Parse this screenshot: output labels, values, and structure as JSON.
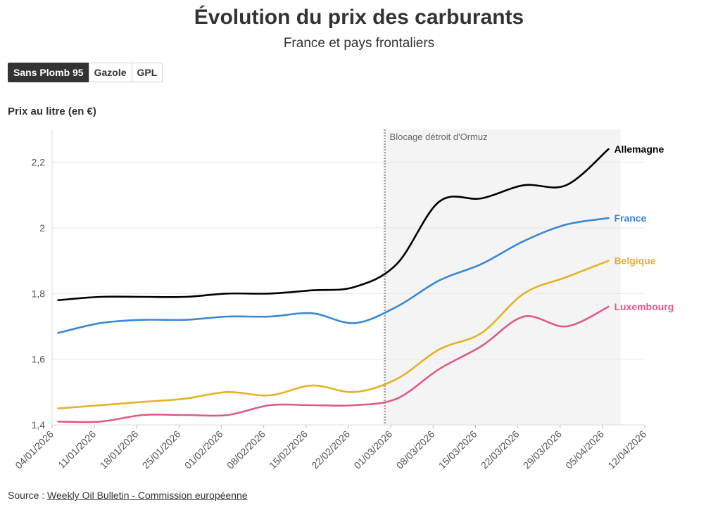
{
  "title": "Évolution du prix des carburants",
  "subtitle": "France et pays frontaliers",
  "tabs": [
    {
      "label": "Sans Plomb 95",
      "active": true
    },
    {
      "label": "Gazole",
      "active": false
    },
    {
      "label": "GPL",
      "active": false
    }
  ],
  "source": {
    "prefix": "Source :",
    "link_text": "Weekly Oil Bulletin - Commission européenne"
  },
  "chart_data": {
    "type": "line",
    "ylabel": "Prix au litre (en €)",
    "ylim": [
      1.4,
      2.3
    ],
    "yticks": [
      1.4,
      1.6,
      1.8,
      2.0,
      2.2
    ],
    "ytick_labels": [
      "1,4",
      "1,6",
      "1,8",
      "2",
      "2,2"
    ],
    "xlim": [
      "2026-01-04",
      "2026-04-12"
    ],
    "xticks": [
      "04/01/2026",
      "11/01/2026",
      "18/01/2026",
      "25/01/2026",
      "01/02/2026",
      "08/02/2026",
      "15/02/2026",
      "22/02/2026",
      "01/03/2026",
      "08/03/2026",
      "15/03/2026",
      "22/03/2026",
      "29/03/2026",
      "05/04/2026",
      "12/04/2026"
    ],
    "grid": true,
    "annotation": {
      "label": "Blocage détroit d'Ormuz",
      "x": "2026-02-28",
      "shaded_until": "2026-04-08"
    },
    "x": [
      "2026-01-05",
      "2026-01-12",
      "2026-01-19",
      "2026-01-26",
      "2026-02-02",
      "2026-02-09",
      "2026-02-16",
      "2026-02-23",
      "2026-03-02",
      "2026-03-09",
      "2026-03-16",
      "2026-03-23",
      "2026-03-30",
      "2026-04-06"
    ],
    "series": [
      {
        "name": "Allemagne",
        "color": "#000000",
        "values": [
          1.78,
          1.79,
          1.79,
          1.79,
          1.8,
          1.8,
          1.81,
          1.82,
          1.89,
          2.08,
          2.09,
          2.13,
          2.13,
          2.24
        ]
      },
      {
        "name": "France",
        "color": "#3a87d6",
        "values": [
          1.68,
          1.71,
          1.72,
          1.72,
          1.73,
          1.73,
          1.74,
          1.71,
          1.76,
          1.84,
          1.89,
          1.96,
          2.01,
          2.03
        ]
      },
      {
        "name": "Belgique",
        "color": "#e5b224",
        "values": [
          1.45,
          1.46,
          1.47,
          1.48,
          1.5,
          1.49,
          1.52,
          1.5,
          1.54,
          1.63,
          1.68,
          1.8,
          1.85,
          1.9
        ]
      },
      {
        "name": "Luxembourg",
        "color": "#de5a8c",
        "values": [
          1.41,
          1.41,
          1.43,
          1.43,
          1.43,
          1.46,
          1.46,
          1.46,
          1.48,
          1.57,
          1.64,
          1.73,
          1.7,
          1.76
        ]
      }
    ]
  }
}
